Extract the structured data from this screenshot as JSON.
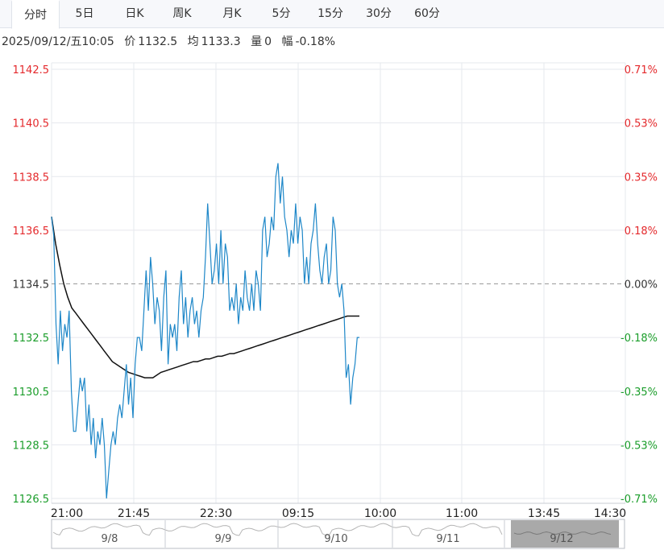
{
  "tabs": [
    "分时",
    "5日",
    "日K",
    "周K",
    "月K",
    "5分",
    "15分",
    "30分",
    "60分"
  ],
  "active_tab": 0,
  "info": {
    "datetime": "2025/09/12/五10:05",
    "price_label": "价",
    "price": "1132.5",
    "avg_label": "均",
    "avg": "1133.3",
    "vol_label": "量",
    "vol": "0",
    "chg_label": "幅",
    "chg": "-0.18%"
  },
  "colors": {
    "up": "#e4292c",
    "down": "#1a9d2a",
    "price_line": "#1e87c8",
    "avg_line": "#111111",
    "grid": "#e6e8ee"
  },
  "chart_data": {
    "type": "line",
    "ylim": [
      1126.5,
      1142.5
    ],
    "reference": 1134.5,
    "y_ticks": [
      "1142.5",
      "1140.5",
      "1138.5",
      "1136.5",
      "1134.5",
      "1132.5",
      "1130.5",
      "1128.5",
      "1126.5"
    ],
    "y_ticks_pct": [
      "0.71%",
      "0.53%",
      "0.35%",
      "0.18%",
      "0.00%",
      "-0.18%",
      "-0.35%",
      "-0.53%",
      "-0.71%"
    ],
    "x_ticks": [
      "21:00",
      "21:45",
      "22:30",
      "09:15",
      "10:00",
      "11:00",
      "13:45",
      "14:30"
    ],
    "series": [
      {
        "values": [
          1137.0,
          1136.3,
          1133.0,
          1131.5,
          1133.5,
          1132.0,
          1133.0,
          1132.5,
          1133.5,
          1130.5,
          1129.0,
          1129.0,
          1130.0,
          1131.0,
          1130.5,
          1131.0,
          1129.0,
          1130.0,
          1128.5,
          1129.5,
          1128.0,
          1129.0,
          1128.5,
          1129.5,
          1128.5,
          1126.5,
          1127.5,
          1128.5,
          1129.0,
          1128.5,
          1129.5,
          1130.0,
          1129.5,
          1130.5,
          1131.5,
          1130.0,
          1131.0,
          1129.5,
          1131.5,
          1132.5,
          1132.5,
          1132.0,
          1133.5,
          1135.0,
          1133.5,
          1135.5,
          1134.5,
          1133.0,
          1134.0,
          1133.5,
          1132.0,
          1134.0,
          1135.0,
          1131.5,
          1133.0,
          1132.5,
          1133.0,
          1132.0,
          1134.0,
          1135.0,
          1133.0,
          1134.0,
          1132.5,
          1133.5,
          1134.0,
          1133.0,
          1133.5,
          1132.5,
          1133.5,
          1134.0,
          1135.5,
          1137.5,
          1136.0,
          1134.5,
          1135.0,
          1136.0,
          1134.5,
          1136.5,
          1134.5,
          1136.0,
          1135.5,
          1133.5,
          1134.0,
          1133.5,
          1134.5,
          1133.0,
          1134.0,
          1133.5,
          1135.0,
          1134.0,
          1133.5,
          1134.5,
          1133.5,
          1135.0,
          1134.5,
          1133.5,
          1136.5,
          1137.0,
          1135.5,
          1136.0,
          1137.0,
          1136.5,
          1138.5,
          1139.0,
          1137.5,
          1138.5,
          1137.0,
          1136.5,
          1135.5,
          1136.5,
          1136.0,
          1137.5,
          1136.0,
          1137.0,
          1136.5,
          1134.5,
          1135.5,
          1134.5,
          1136.0,
          1136.5,
          1137.5,
          1136.0,
          1135.0,
          1134.5,
          1135.5,
          1136.0,
          1134.5,
          1135.0,
          1137.0,
          1136.5,
          1134.5,
          1134.0,
          1134.5,
          1133.5,
          1131.0,
          1131.5,
          1130.0,
          1131.0,
          1131.5,
          1132.5,
          1132.5
        ],
        "values_note": ""
      },
      {
        "values": [
          1137.0,
          1136.0,
          1135.2,
          1134.5,
          1134.0,
          1133.6,
          1133.4,
          1133.2,
          1133.0,
          1132.8,
          1132.6,
          1132.4,
          1132.2,
          1132.0,
          1131.8,
          1131.6,
          1131.5,
          1131.4,
          1131.3,
          1131.2,
          1131.15,
          1131.1,
          1131.05,
          1131.0,
          1131.0,
          1131.0,
          1131.1,
          1131.2,
          1131.25,
          1131.3,
          1131.35,
          1131.4,
          1131.45,
          1131.5,
          1131.55,
          1131.6,
          1131.6,
          1131.65,
          1131.7,
          1131.7,
          1131.75,
          1131.8,
          1131.8,
          1131.85,
          1131.9,
          1131.9,
          1131.95,
          1132.0,
          1132.05,
          1132.1,
          1132.15,
          1132.2,
          1132.25,
          1132.3,
          1132.35,
          1132.4,
          1132.45,
          1132.5,
          1132.55,
          1132.6,
          1132.65,
          1132.7,
          1132.75,
          1132.8,
          1132.85,
          1132.9,
          1132.95,
          1133.0,
          1133.05,
          1133.1,
          1133.15,
          1133.2,
          1133.25,
          1133.3,
          1133.3,
          1133.3,
          1133.3
        ]
      }
    ]
  },
  "navigator": {
    "labels": [
      "9/8",
      "9/9",
      "9/10",
      "9/11",
      "9/12"
    ]
  }
}
